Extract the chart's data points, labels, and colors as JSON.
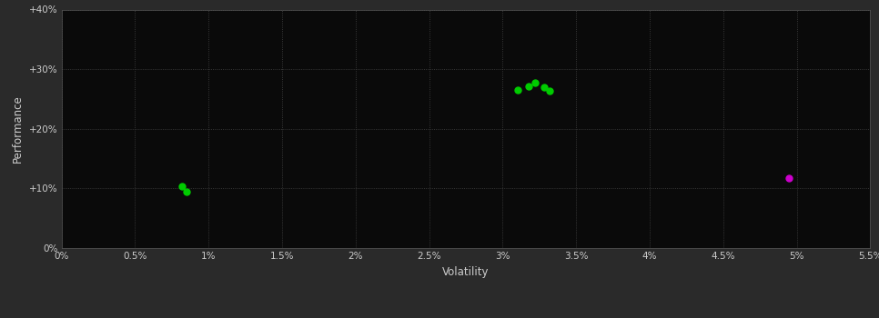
{
  "background_color": "#2a2a2a",
  "plot_bg_color": "#0a0a0a",
  "grid_color": "#444444",
  "text_color": "#cccccc",
  "xlabel": "Volatility",
  "ylabel": "Performance",
  "xlim": [
    0.0,
    0.055
  ],
  "ylim": [
    0.0,
    0.4
  ],
  "xticks": [
    0.0,
    0.005,
    0.01,
    0.015,
    0.02,
    0.025,
    0.03,
    0.035,
    0.04,
    0.045,
    0.05,
    0.055
  ],
  "yticks": [
    0.0,
    0.1,
    0.2,
    0.3,
    0.4
  ],
  "xtick_labels": [
    "0%",
    "0.5%",
    "1%",
    "1.5%",
    "2%",
    "2.5%",
    "3%",
    "3.5%",
    "4%",
    "4.5%",
    "5%",
    "5.5%"
  ],
  "ytick_labels": [
    "0%",
    "+10%",
    "+20%",
    "+30%",
    "+40%"
  ],
  "green_points": [
    [
      0.0082,
      0.103
    ],
    [
      0.0085,
      0.094
    ],
    [
      0.031,
      0.265
    ],
    [
      0.0318,
      0.272
    ],
    [
      0.0322,
      0.278
    ],
    [
      0.0328,
      0.27
    ],
    [
      0.0332,
      0.264
    ]
  ],
  "magenta_points": [
    [
      0.0495,
      0.118
    ]
  ],
  "green_color": "#00cc00",
  "magenta_color": "#cc00cc",
  "marker_size": 5
}
